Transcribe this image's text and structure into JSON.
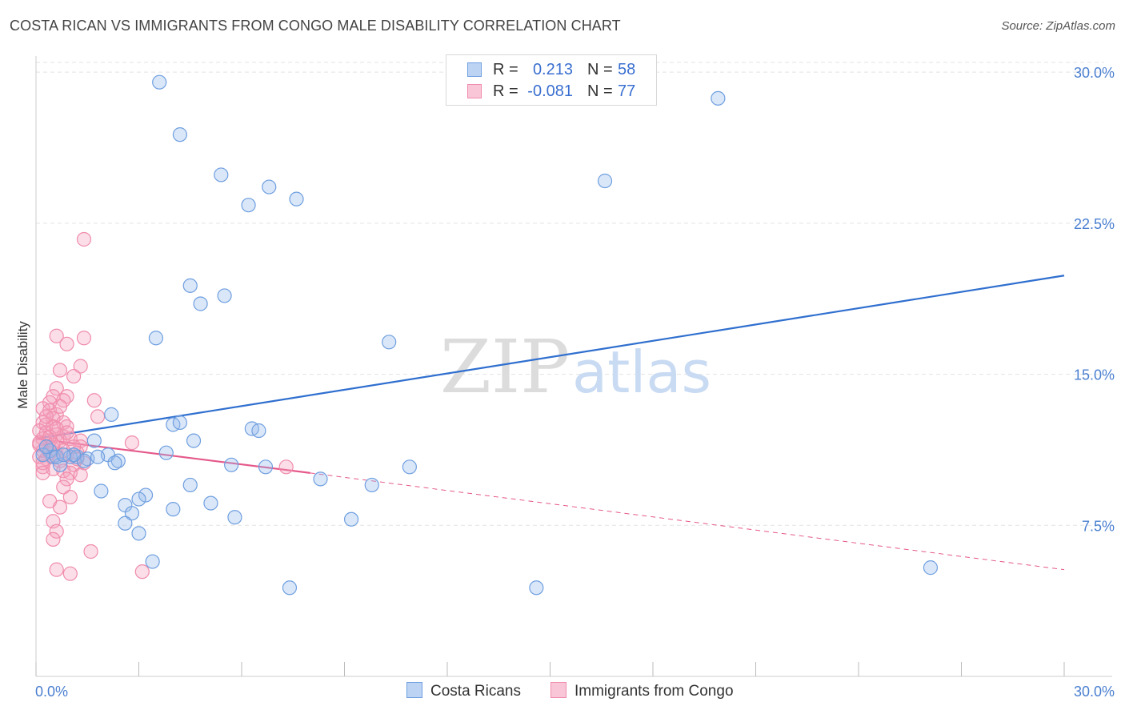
{
  "title": "COSTA RICAN VS IMMIGRANTS FROM CONGO MALE DISABILITY CORRELATION CHART",
  "source": "Source: ZipAtlas.com",
  "watermark": {
    "zip": "ZIP",
    "atlas": "atlas"
  },
  "legend": {
    "r_label": "R =",
    "n_label": "N =",
    "rows": [
      {
        "name": "Costa Ricans",
        "r": "0.213",
        "n": "58",
        "color": "#6f9fe0"
      },
      {
        "name": "Immigrants from Congo",
        "r": "-0.081",
        "n": "77",
        "color": "#f08cab"
      }
    ]
  },
  "chart_data": {
    "type": "scatter",
    "title": "COSTA RICAN VS IMMIGRANTS FROM CONGO MALE DISABILITY CORRELATION CHART",
    "xlabel": "",
    "ylabel": "Male Disability",
    "xlim": [
      0,
      30
    ],
    "ylim": [
      0,
      30.8
    ],
    "x_tick_labels": [
      "0.0%",
      "30.0%"
    ],
    "y_ticks": [
      7.5,
      15.0,
      22.5,
      30.0
    ],
    "y_tick_labels": [
      "7.5%",
      "15.0%",
      "22.5%",
      "30.0%"
    ],
    "grid": true,
    "series": [
      {
        "name": "Costa Ricans",
        "color": "#6f9fe0",
        "line_color": "#2f6fcf",
        "trend": {
          "x0": 0,
          "y0": 11.8,
          "x1": 30,
          "y1": 19.9,
          "dashed_to": null
        },
        "points": [
          [
            3.6,
            29.5
          ],
          [
            4.2,
            26.9
          ],
          [
            5.4,
            24.9
          ],
          [
            6.8,
            24.3
          ],
          [
            6.2,
            23.4
          ],
          [
            7.6,
            23.7
          ],
          [
            16.6,
            24.6
          ],
          [
            19.9,
            28.7
          ],
          [
            4.5,
            19.4
          ],
          [
            5.5,
            18.9
          ],
          [
            4.8,
            18.5
          ],
          [
            3.5,
            16.8
          ],
          [
            10.3,
            16.6
          ],
          [
            2.2,
            13.0
          ],
          [
            4.0,
            12.5
          ],
          [
            4.2,
            12.6
          ],
          [
            6.3,
            12.3
          ],
          [
            6.5,
            12.2
          ],
          [
            1.7,
            11.7
          ],
          [
            4.6,
            11.7
          ],
          [
            0.4,
            11.2
          ],
          [
            0.5,
            10.9
          ],
          [
            1.0,
            10.9
          ],
          [
            1.2,
            10.9
          ],
          [
            1.5,
            10.8
          ],
          [
            1.4,
            10.7
          ],
          [
            2.1,
            11.0
          ],
          [
            2.4,
            10.7
          ],
          [
            0.7,
            10.5
          ],
          [
            3.8,
            11.1
          ],
          [
            5.7,
            10.5
          ],
          [
            6.7,
            10.4
          ],
          [
            8.3,
            9.8
          ],
          [
            10.9,
            10.4
          ],
          [
            9.8,
            9.5
          ],
          [
            1.9,
            9.2
          ],
          [
            3.2,
            9.0
          ],
          [
            4.5,
            9.5
          ],
          [
            2.6,
            8.5
          ],
          [
            3.0,
            8.8
          ],
          [
            2.8,
            8.1
          ],
          [
            4.0,
            8.3
          ],
          [
            5.1,
            8.6
          ],
          [
            5.8,
            7.9
          ],
          [
            9.2,
            7.8
          ],
          [
            2.6,
            7.6
          ],
          [
            3.0,
            7.1
          ],
          [
            3.4,
            5.7
          ],
          [
            7.4,
            4.4
          ],
          [
            14.6,
            4.4
          ],
          [
            26.1,
            5.4
          ],
          [
            0.2,
            11.0
          ],
          [
            0.3,
            11.4
          ],
          [
            1.1,
            11.0
          ],
          [
            0.6,
            10.9
          ],
          [
            0.8,
            11.0
          ],
          [
            2.3,
            10.6
          ],
          [
            1.8,
            10.9
          ]
        ]
      },
      {
        "name": "Immigrants from Congo",
        "color": "#f08cab",
        "line_color": "#e5588a",
        "trend": {
          "x0": 0,
          "y0": 11.8,
          "x1": 8.0,
          "y1": 10.1,
          "dashed_to": {
            "x": 30,
            "y": 5.3
          }
        },
        "points": [
          [
            1.4,
            21.7
          ],
          [
            0.6,
            16.9
          ],
          [
            0.9,
            16.5
          ],
          [
            1.4,
            16.8
          ],
          [
            1.3,
            15.4
          ],
          [
            0.7,
            15.2
          ],
          [
            1.1,
            14.9
          ],
          [
            0.6,
            14.3
          ],
          [
            0.5,
            13.9
          ],
          [
            0.9,
            13.9
          ],
          [
            0.8,
            13.7
          ],
          [
            1.7,
            13.7
          ],
          [
            0.4,
            13.6
          ],
          [
            0.2,
            13.3
          ],
          [
            0.4,
            13.2
          ],
          [
            0.6,
            13.0
          ],
          [
            0.5,
            12.8
          ],
          [
            1.8,
            12.9
          ],
          [
            0.2,
            12.6
          ],
          [
            0.3,
            12.5
          ],
          [
            0.5,
            12.4
          ],
          [
            0.8,
            12.6
          ],
          [
            0.9,
            12.4
          ],
          [
            0.1,
            12.2
          ],
          [
            0.3,
            12.1
          ],
          [
            0.6,
            12.0
          ],
          [
            0.8,
            11.9
          ],
          [
            0.2,
            11.8
          ],
          [
            0.4,
            11.7
          ],
          [
            0.7,
            11.7
          ],
          [
            1.0,
            11.8
          ],
          [
            1.3,
            11.7
          ],
          [
            2.8,
            11.6
          ],
          [
            0.1,
            11.5
          ],
          [
            0.3,
            11.4
          ],
          [
            0.5,
            11.3
          ],
          [
            1.3,
            11.4
          ],
          [
            0.2,
            11.2
          ],
          [
            0.4,
            11.1
          ],
          [
            0.6,
            11.0
          ],
          [
            0.9,
            11.0
          ],
          [
            1.2,
            11.1
          ],
          [
            0.1,
            10.9
          ],
          [
            0.3,
            10.8
          ],
          [
            0.7,
            10.7
          ],
          [
            1.4,
            10.6
          ],
          [
            1.1,
            10.5
          ],
          [
            0.2,
            10.4
          ],
          [
            0.5,
            10.3
          ],
          [
            0.8,
            10.2
          ],
          [
            1.0,
            10.1
          ],
          [
            1.3,
            10.0
          ],
          [
            0.9,
            9.8
          ],
          [
            0.8,
            9.4
          ],
          [
            1.0,
            8.9
          ],
          [
            0.4,
            8.7
          ],
          [
            0.7,
            8.4
          ],
          [
            0.5,
            7.7
          ],
          [
            0.6,
            7.2
          ],
          [
            0.5,
            6.8
          ],
          [
            1.6,
            6.2
          ],
          [
            0.6,
            5.3
          ],
          [
            1.0,
            5.1
          ],
          [
            3.1,
            5.2
          ],
          [
            7.3,
            10.4
          ],
          [
            0.2,
            10.6
          ],
          [
            0.1,
            11.6
          ],
          [
            0.3,
            12.9
          ],
          [
            0.4,
            11.9
          ],
          [
            0.6,
            12.3
          ],
          [
            0.8,
            11.2
          ],
          [
            1.1,
            11.4
          ],
          [
            0.2,
            10.1
          ],
          [
            0.5,
            11.5
          ],
          [
            0.7,
            13.4
          ],
          [
            0.9,
            12.1
          ],
          [
            1.2,
            10.8
          ]
        ]
      }
    ]
  }
}
